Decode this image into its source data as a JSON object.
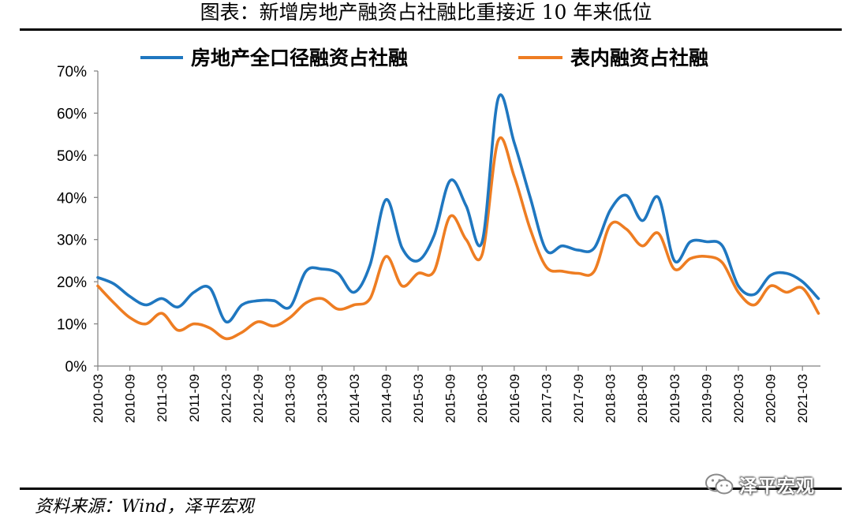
{
  "title": "图表：新增房地产融资占社融比重接近 10 年来低位",
  "source": "资料来源：Wind，泽平宏观",
  "watermark": "泽平宏观",
  "colors": {
    "series_blue": "#1f77c0",
    "series_orange": "#ee7d22",
    "axis": "#808080"
  },
  "chart_data": {
    "type": "line",
    "title": "",
    "xlabel": "",
    "ylabel": "",
    "ylim": [
      0,
      70
    ],
    "yunit": "%",
    "yticks": [
      0,
      10,
      20,
      30,
      40,
      50,
      60,
      70
    ],
    "ytick_labels": [
      "0%",
      "10%",
      "20%",
      "30%",
      "40%",
      "50%",
      "60%",
      "70%"
    ],
    "xtick_labels": [
      "2010-03",
      "2010-09",
      "2011-03",
      "2011-09",
      "2012-03",
      "2012-09",
      "2013-03",
      "2013-09",
      "2014-03",
      "2014-09",
      "2015-03",
      "2015-09",
      "2016-03",
      "2016-09",
      "2017-03",
      "2017-09",
      "2018-03",
      "2018-09",
      "2019-03",
      "2019-09",
      "2020-03",
      "2020-09",
      "2021-03"
    ],
    "legend_position": "top",
    "series": [
      {
        "name": "房地产全口径融资占社融",
        "color": "#1f77c0",
        "points": [
          [
            0,
            21
          ],
          [
            0.5,
            19.5
          ],
          [
            1,
            16.5
          ],
          [
            1.5,
            14.5
          ],
          [
            2,
            16
          ],
          [
            2.5,
            14
          ],
          [
            3,
            17.5
          ],
          [
            3.5,
            18.5
          ],
          [
            4,
            10.5
          ],
          [
            4.5,
            14.5
          ],
          [
            5,
            15.5
          ],
          [
            5.5,
            15.5
          ],
          [
            6,
            14
          ],
          [
            6.5,
            22.5
          ],
          [
            7,
            23
          ],
          [
            7.5,
            22
          ],
          [
            8,
            17.5
          ],
          [
            8.5,
            24
          ],
          [
            9,
            39.5
          ],
          [
            9.5,
            28
          ],
          [
            10,
            25
          ],
          [
            10.5,
            31
          ],
          [
            11,
            44
          ],
          [
            11.5,
            38
          ],
          [
            12,
            29.5
          ],
          [
            12.5,
            63.5
          ],
          [
            13,
            53
          ],
          [
            13.5,
            40
          ],
          [
            14,
            27.5
          ],
          [
            14.5,
            28.5
          ],
          [
            15,
            27.5
          ],
          [
            15.5,
            28
          ],
          [
            16,
            37
          ],
          [
            16.5,
            40.5
          ],
          [
            17,
            34.5
          ],
          [
            17.5,
            40
          ],
          [
            18,
            25
          ],
          [
            18.5,
            29.5
          ],
          [
            19,
            29.5
          ],
          [
            19.5,
            28.5
          ],
          [
            20,
            19
          ],
          [
            20.5,
            17
          ],
          [
            21,
            21.5
          ],
          [
            21.5,
            22
          ],
          [
            22,
            20
          ],
          [
            22.5,
            16
          ]
        ]
      },
      {
        "name": "表内融资占社融",
        "color": "#ee7d22",
        "points": [
          [
            0,
            19
          ],
          [
            0.5,
            15
          ],
          [
            1,
            11.5
          ],
          [
            1.5,
            10
          ],
          [
            2,
            12.5
          ],
          [
            2.5,
            8.5
          ],
          [
            3,
            10
          ],
          [
            3.5,
            9
          ],
          [
            4,
            6.5
          ],
          [
            4.5,
            8
          ],
          [
            5,
            10.5
          ],
          [
            5.5,
            9.5
          ],
          [
            6,
            11.5
          ],
          [
            6.5,
            15
          ],
          [
            7,
            16
          ],
          [
            7.5,
            13.5
          ],
          [
            8,
            14.5
          ],
          [
            8.5,
            16
          ],
          [
            9,
            26
          ],
          [
            9.5,
            19
          ],
          [
            10,
            22
          ],
          [
            10.5,
            22.5
          ],
          [
            11,
            35.5
          ],
          [
            11.5,
            30
          ],
          [
            12,
            26.5
          ],
          [
            12.5,
            53.5
          ],
          [
            13,
            45
          ],
          [
            13.5,
            32.5
          ],
          [
            14,
            23.5
          ],
          [
            14.5,
            22.5
          ],
          [
            15,
            22
          ],
          [
            15.5,
            22.5
          ],
          [
            16,
            33.5
          ],
          [
            16.5,
            32.5
          ],
          [
            17,
            28.5
          ],
          [
            17.5,
            31.5
          ],
          [
            18,
            23
          ],
          [
            18.5,
            25.5
          ],
          [
            19,
            26
          ],
          [
            19.5,
            24.5
          ],
          [
            20,
            17.5
          ],
          [
            20.5,
            14.5
          ],
          [
            21,
            19
          ],
          [
            21.5,
            17.5
          ],
          [
            22,
            18.5
          ],
          [
            22.5,
            12.5
          ]
        ]
      }
    ]
  }
}
